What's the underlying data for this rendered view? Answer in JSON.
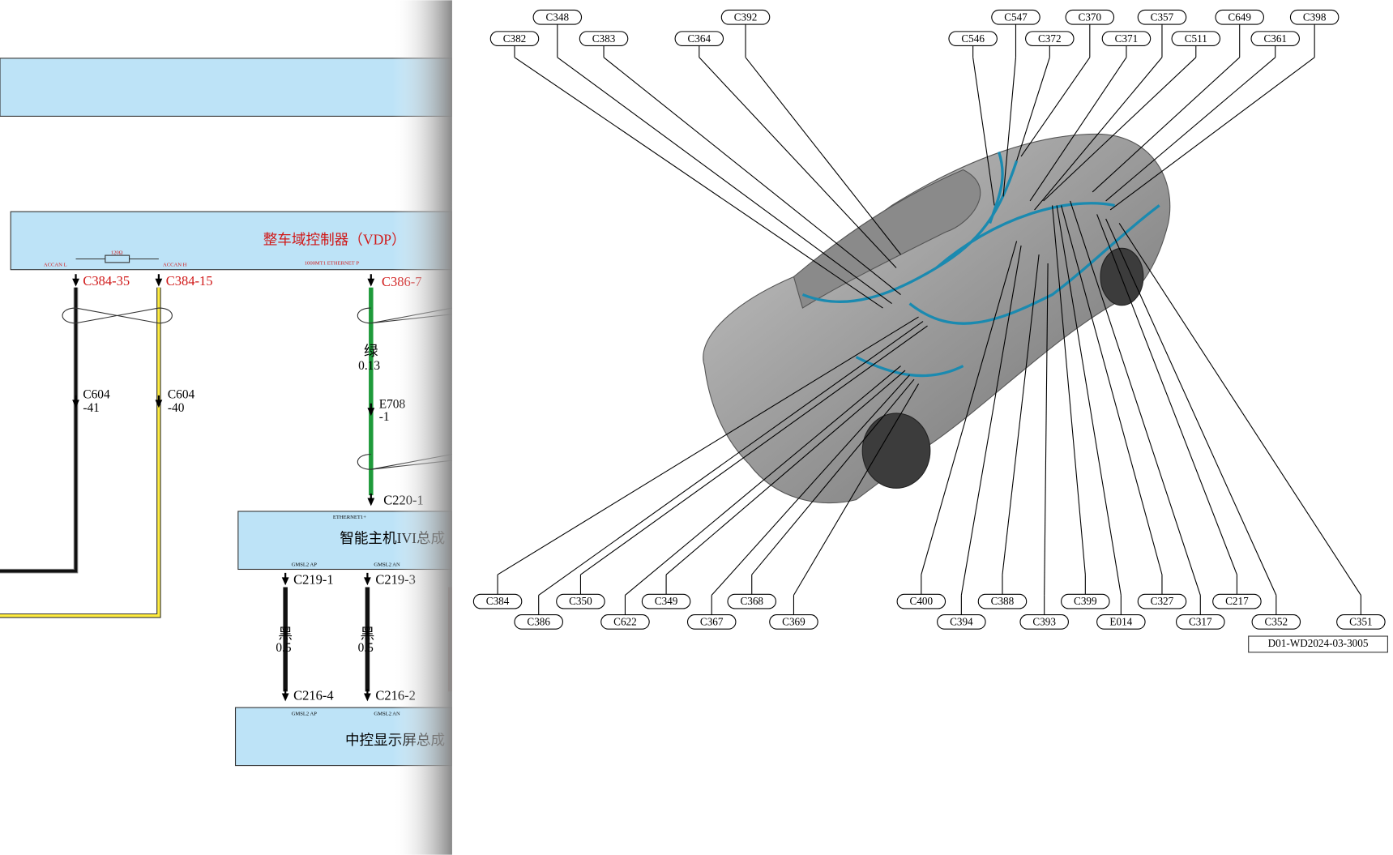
{
  "schematic": {
    "labels": [
      "整车域控制器（VDP）",
      "ACCAN L",
      "120Ω",
      "ACCAN H",
      "1000MT1 ETHERNET P",
      "C384-35",
      "C384-15",
      "C386-7",
      "C604",
      "-41",
      "C604",
      "-40",
      "绿",
      "0.13",
      "E708",
      "-1",
      "C220-1",
      "ETHERNET1+",
      "智能主机IVI总成",
      "GMSL2 AP",
      "GMSL2 AN",
      "C219-1",
      "C219-3",
      "黑",
      "0.5",
      "黑",
      "0.5",
      "C216-4",
      "C216-2",
      "GMSL2 AP",
      "GMSL2 AN",
      "中控显示屏总成"
    ]
  },
  "car_view": {
    "callouts": [
      "C348",
      "C392",
      "C547",
      "C370",
      "C357",
      "C649",
      "C398",
      "C382",
      "C383",
      "C364",
      "C546",
      "C372",
      "C371",
      "C511",
      "C361",
      "C384",
      "C350",
      "C349",
      "C368",
      "C400",
      "C388",
      "C399",
      "C327",
      "C217",
      "C386",
      "C622",
      "C367",
      "C369",
      "C394",
      "C393",
      "E014",
      "C317",
      "C352",
      "C351"
    ],
    "drawing_number": "D01-WD2024-03-3005"
  }
}
